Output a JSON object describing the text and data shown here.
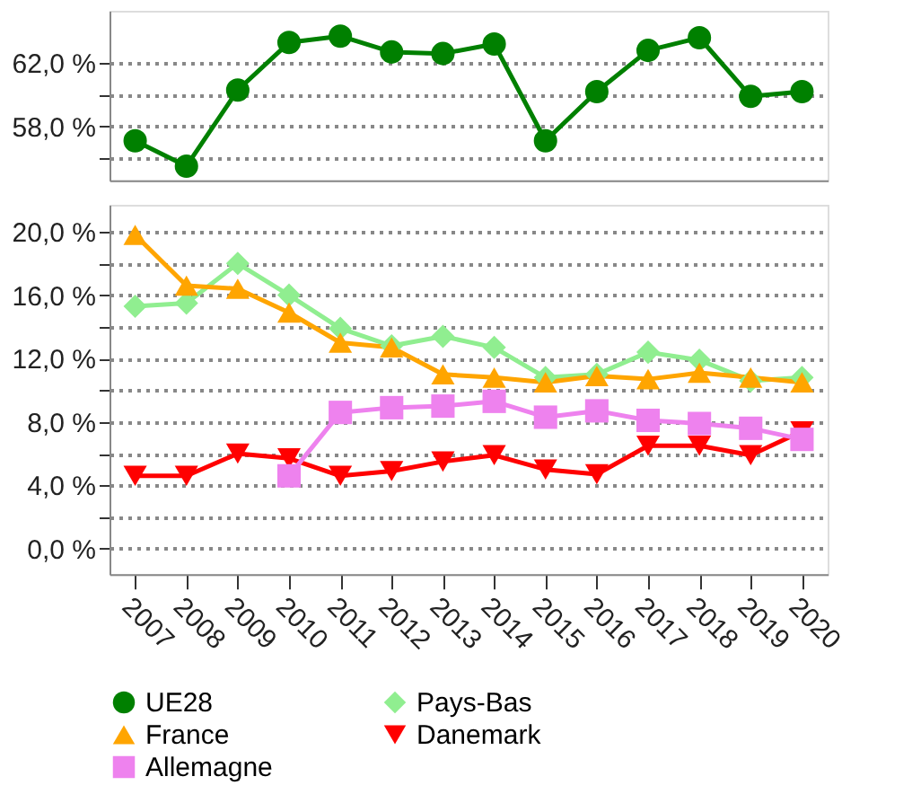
{
  "chart_data": [
    {
      "type": "line",
      "categories": [
        "2007",
        "2008",
        "2009",
        "2010",
        "2011",
        "2012",
        "2013",
        "2014",
        "2015",
        "2016",
        "2017",
        "2018",
        "2019",
        "2020"
      ],
      "ylim": [
        54.6,
        65.3
      ],
      "yticks": [
        {
          "value": 56,
          "label": null
        },
        {
          "value": 58,
          "label": "58,0 %"
        },
        {
          "value": 60,
          "label": null
        },
        {
          "value": 62,
          "label": "62,0 %"
        }
      ],
      "grid": "y",
      "tick_labels": "y",
      "legend": "bottom",
      "line_style": "solid",
      "series": [
        {
          "name": "UE28",
          "color": "#008000",
          "marker": "circle",
          "values": [
            57.1,
            55.5,
            60.3,
            63.3,
            63.7,
            62.7,
            62.6,
            63.2,
            57.1,
            60.2,
            62.8,
            63.6,
            59.9,
            60.2
          ]
        }
      ]
    },
    {
      "type": "line",
      "categories": [
        "2007",
        "2008",
        "2009",
        "2010",
        "2011",
        "2012",
        "2013",
        "2014",
        "2015",
        "2016",
        "2017",
        "2018",
        "2019",
        "2020"
      ],
      "ylim": [
        -1.6,
        21.7
      ],
      "yticks": [
        {
          "value": 0,
          "label": "0,0 %"
        },
        {
          "value": 2,
          "label": null
        },
        {
          "value": 4,
          "label": "4,0 %"
        },
        {
          "value": 6,
          "label": null
        },
        {
          "value": 8,
          "label": "8,0 %"
        },
        {
          "value": 10,
          "label": null
        },
        {
          "value": 12,
          "label": "12,0 %"
        },
        {
          "value": 14,
          "label": null
        },
        {
          "value": 16,
          "label": "16,0 %"
        },
        {
          "value": 18,
          "label": null
        },
        {
          "value": 20,
          "label": "20,0 %"
        }
      ],
      "grid": "y",
      "legend": "bottom",
      "line_style": "solid",
      "series": [
        {
          "name": "Pays-Bas",
          "color": "#90ee90",
          "marker": "diamond",
          "values": [
            15.3,
            15.5,
            18.0,
            16.0,
            13.9,
            12.8,
            13.4,
            12.7,
            10.8,
            11.0,
            12.4,
            11.9,
            10.6,
            10.8
          ]
        },
        {
          "name": "France",
          "color": "#ffa500",
          "marker": "triangle",
          "values": [
            19.8,
            16.6,
            16.4,
            14.9,
            13.0,
            12.7,
            11.0,
            10.8,
            10.5,
            10.9,
            10.7,
            11.1,
            10.8,
            10.5
          ]
        },
        {
          "name": "Danemark",
          "color": "#ff0000",
          "marker": "triangle-down",
          "values": [
            4.6,
            4.6,
            6.0,
            5.7,
            4.6,
            4.9,
            5.5,
            5.9,
            5.0,
            4.7,
            6.5,
            6.5,
            5.9,
            7.4
          ]
        },
        {
          "name": "Allemagne",
          "color": "#ee82ee",
          "marker": "square",
          "values": [
            null,
            null,
            null,
            4.6,
            8.6,
            8.9,
            9.0,
            9.3,
            8.3,
            8.7,
            8.1,
            7.9,
            7.6,
            6.9
          ]
        }
      ]
    }
  ]
}
